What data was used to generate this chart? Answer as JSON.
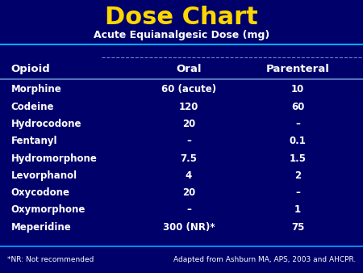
{
  "title": "Dose Chart",
  "subtitle": "Acute Equianalgesic Dose (mg)",
  "bg_color": "#00006A",
  "title_color": "#FFD700",
  "header_text_color": "#FFFFFF",
  "data_text_color": "#FFFFFF",
  "col_headers": [
    "Opioid",
    "Oral",
    "Parenteral"
  ],
  "rows": [
    [
      "Morphine",
      "60 (acute)",
      "10"
    ],
    [
      "Codeine",
      "120",
      "60"
    ],
    [
      "Hydrocodone",
      "20",
      "–"
    ],
    [
      "Fentanyl",
      "–",
      "0.1"
    ],
    [
      "Hydromorphone",
      "7.5",
      "1.5"
    ],
    [
      "Levorphanol",
      "4",
      "2"
    ],
    [
      "Oxycodone",
      "20",
      "–"
    ],
    [
      "Oxymorphone",
      "–",
      "1"
    ],
    [
      "Meperidine",
      "300 (NR)*",
      "75"
    ]
  ],
  "footer_left": "*NR: Not recommended",
  "footer_right": "Adapted from Ashburn MA, APS, 2003 and AHCPR.",
  "line_color_bright": "#00AAFF",
  "separator_color": "#6688CC"
}
